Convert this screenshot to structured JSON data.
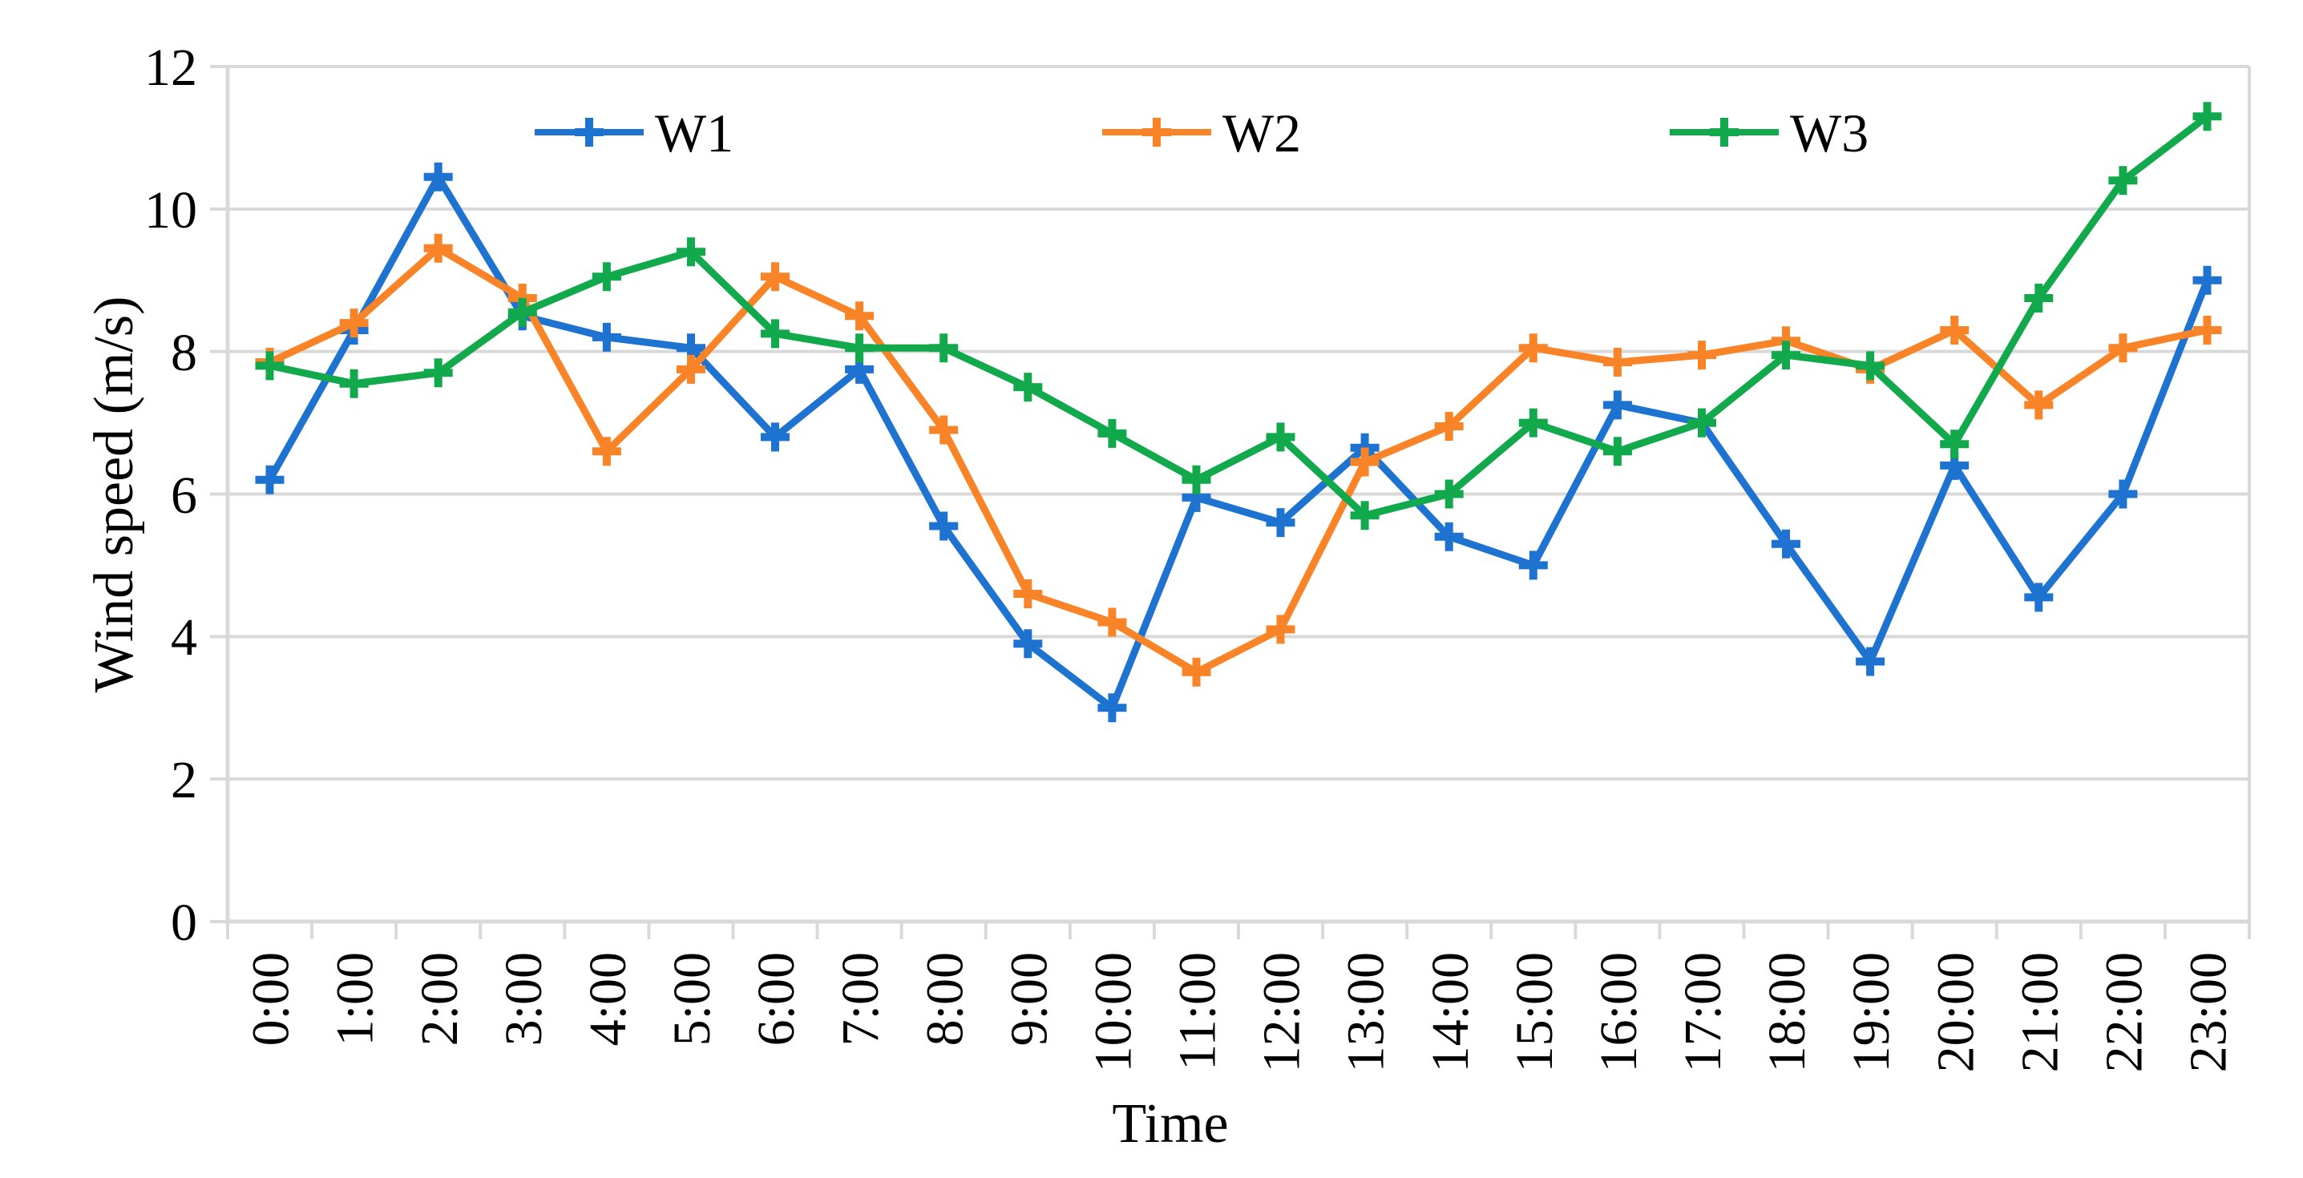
{
  "chart_data": {
    "type": "line",
    "title": "",
    "xlabel": "Time",
    "ylabel": "Wind speed (m/s)",
    "categories": [
      "0:00",
      "1:00",
      "2:00",
      "3:00",
      "4:00",
      "5:00",
      "6:00",
      "7:00",
      "8:00",
      "9:00",
      "10:00",
      "11:00",
      "12:00",
      "13:00",
      "14:00",
      "15:00",
      "16:00",
      "17:00",
      "18:00",
      "19:00",
      "20:00",
      "21:00",
      "22:00",
      "23:00"
    ],
    "yticks": [
      0,
      2,
      4,
      6,
      8,
      10,
      12
    ],
    "yticklabels": [
      "0",
      "2",
      "4",
      "6",
      "8",
      "10",
      "12"
    ],
    "ylim": [
      0,
      12
    ],
    "grid": "horizontal-major",
    "legend_position": "top-inside-horizontal",
    "marker": "plus",
    "series": [
      {
        "name": "W1",
        "color": "#1E73D0",
        "values": [
          6.2,
          8.3,
          10.45,
          8.5,
          8.2,
          8.05,
          6.8,
          7.75,
          5.55,
          3.9,
          3.0,
          5.95,
          5.6,
          6.65,
          5.4,
          5.0,
          7.25,
          7.0,
          5.3,
          3.65,
          6.4,
          4.55,
          6.0,
          9.0
        ]
      },
      {
        "name": "W2",
        "color": "#F98427",
        "values": [
          7.85,
          8.4,
          9.45,
          8.75,
          6.6,
          7.75,
          9.05,
          8.5,
          6.9,
          4.6,
          4.2,
          3.5,
          4.1,
          6.45,
          6.95,
          8.05,
          7.85,
          7.95,
          8.15,
          7.75,
          8.3,
          7.25,
          8.05,
          8.3
        ]
      },
      {
        "name": "W3",
        "color": "#12A94D",
        "values": [
          7.8,
          7.55,
          7.7,
          8.55,
          9.05,
          9.4,
          8.25,
          8.05,
          8.05,
          7.5,
          6.85,
          6.2,
          6.8,
          5.7,
          6.0,
          7.0,
          6.6,
          7.0,
          7.95,
          7.8,
          6.7,
          8.75,
          10.4,
          11.3
        ]
      }
    ],
    "colors": {
      "grid": "#D9D9D9",
      "axis": "#D9D9D9",
      "text": "#000000",
      "background": "#FFFFFF"
    }
  }
}
